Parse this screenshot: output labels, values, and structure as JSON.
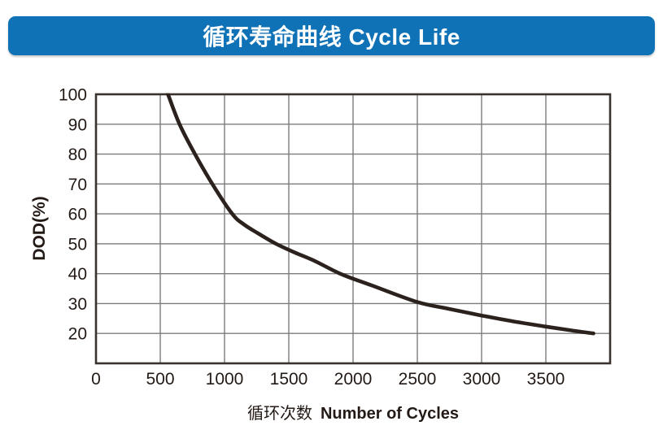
{
  "banner": {
    "title": "循环寿命曲线 Cycle Life",
    "bg_color": "#0f72b6",
    "text_color": "#ffffff"
  },
  "axis": {
    "ylabel": "DOD(%)",
    "xlabel_zh": "循环次数",
    "xlabel_en": "Number of Cycles"
  },
  "chart_data": {
    "type": "line",
    "title": "循环寿命曲线 Cycle Life",
    "xlabel": "循环次数 Number of Cycles",
    "ylabel": "DOD(%)",
    "xlim": [
      0,
      4000
    ],
    "ylim": [
      10,
      100
    ],
    "x_ticks": [
      0,
      500,
      1000,
      1500,
      2000,
      2500,
      3000,
      3500
    ],
    "y_ticks": [
      20,
      30,
      40,
      50,
      60,
      70,
      80,
      90,
      100
    ],
    "grid": true,
    "legend_position": "none",
    "series": [
      {
        "name": "Cycle Life",
        "color": "#2b211d",
        "points": [
          [
            560,
            100
          ],
          [
            650,
            90
          ],
          [
            770,
            80
          ],
          [
            905,
            70
          ],
          [
            1060,
            60
          ],
          [
            1150,
            56.5
          ],
          [
            1260,
            53.5
          ],
          [
            1400,
            50
          ],
          [
            1550,
            47
          ],
          [
            1700,
            44.3
          ],
          [
            1900,
            40
          ],
          [
            2150,
            36
          ],
          [
            2500,
            30.5
          ],
          [
            2750,
            28.2
          ],
          [
            3000,
            26
          ],
          [
            3250,
            24
          ],
          [
            3500,
            22.3
          ],
          [
            3700,
            21
          ],
          [
            3870,
            20
          ]
        ]
      }
    ],
    "colors": {
      "grid": "#7c7c7c",
      "frame": "#3a322e",
      "tick_text": "#231a16"
    }
  }
}
